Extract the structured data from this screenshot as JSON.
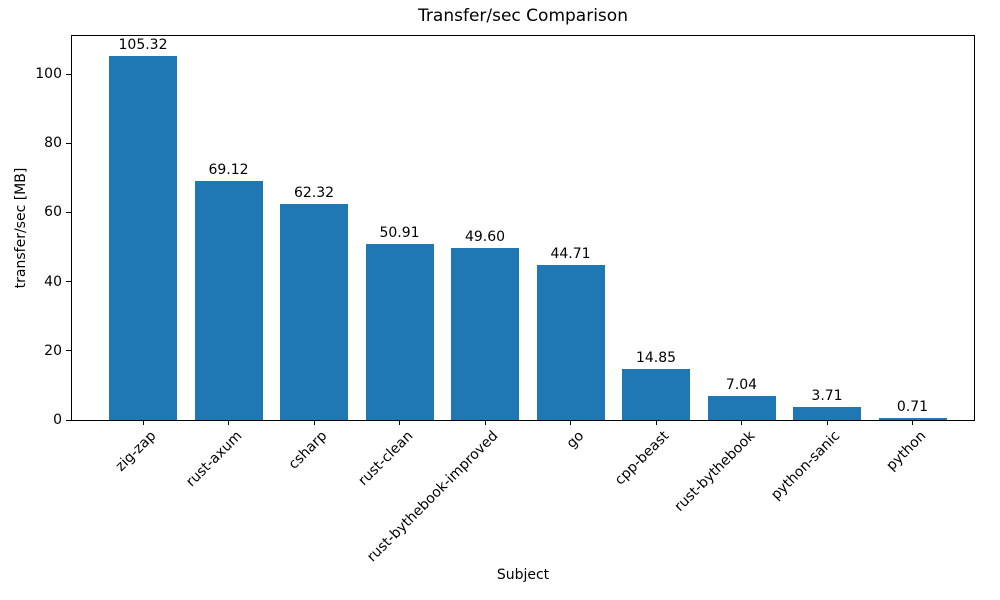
{
  "chart_data": {
    "type": "bar",
    "title": "Transfer/sec Comparison",
    "xlabel": "Subject",
    "ylabel": "transfer/sec [MB]",
    "categories": [
      "zig-zap",
      "rust-axum",
      "csharp",
      "rust-clean",
      "rust-bythebook-improved",
      "go",
      "cpp-beast",
      "rust-bythebook",
      "python-sanic",
      "python"
    ],
    "values": [
      105.32,
      69.12,
      62.32,
      50.91,
      49.6,
      44.71,
      14.85,
      7.04,
      3.71,
      0.71
    ],
    "value_labels": [
      "105.32",
      "69.12",
      "62.32",
      "50.91",
      "49.60",
      "44.71",
      "14.85",
      "7.04",
      "3.71",
      "0.71"
    ],
    "ylim": [
      0,
      111
    ],
    "yticks": [
      0,
      20,
      40,
      60,
      80,
      100
    ],
    "bar_color": "#1f77b4",
    "axis_color": "#000000",
    "grid": false,
    "legend_position": "none"
  }
}
